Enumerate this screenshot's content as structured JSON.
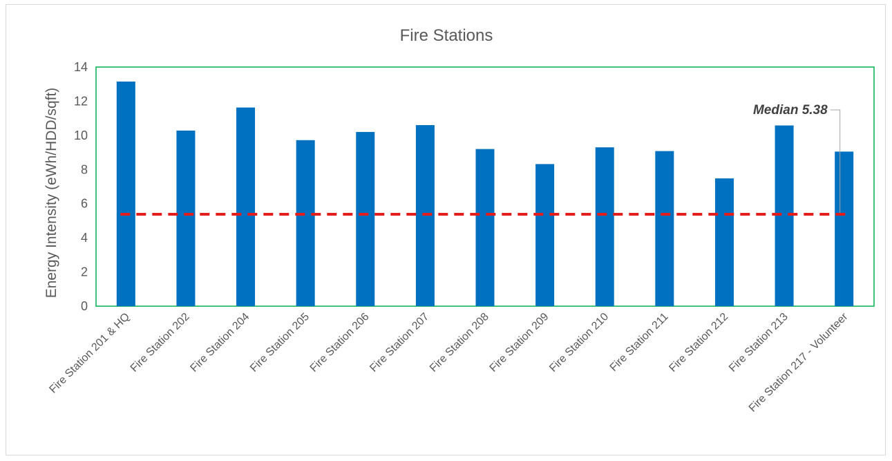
{
  "chart_data": {
    "type": "bar",
    "title": "Fire Stations",
    "xlabel": "",
    "ylabel": "Energy Intensity (eWh/HDD/sqft)",
    "ylim": [
      0,
      14
    ],
    "yticks": [
      0,
      2,
      4,
      6,
      8,
      10,
      12,
      14
    ],
    "grid": false,
    "categories": [
      "Fire Station 201 & HQ",
      "Fire Station 202",
      "Fire Station 204",
      "Fire Station 205",
      "Fire Station 206",
      "Fire Station 207",
      "Fire Station 208",
      "Fire Station 209",
      "Fire Station 210",
      "Fire Station 211",
      "Fire Station 212",
      "Fire Station 213",
      "Fire Station 217 - Volunteer"
    ],
    "values": [
      13.15,
      10.28,
      11.63,
      9.72,
      10.2,
      10.6,
      9.2,
      8.32,
      9.3,
      9.08,
      7.48,
      10.58,
      9.05
    ],
    "bar_color": "#0070C0",
    "median": {
      "value": 5.38,
      "label": "Median 5.38",
      "color": "#E31C1C",
      "style": "dashed"
    },
    "plot_border_color": "#00B050"
  }
}
